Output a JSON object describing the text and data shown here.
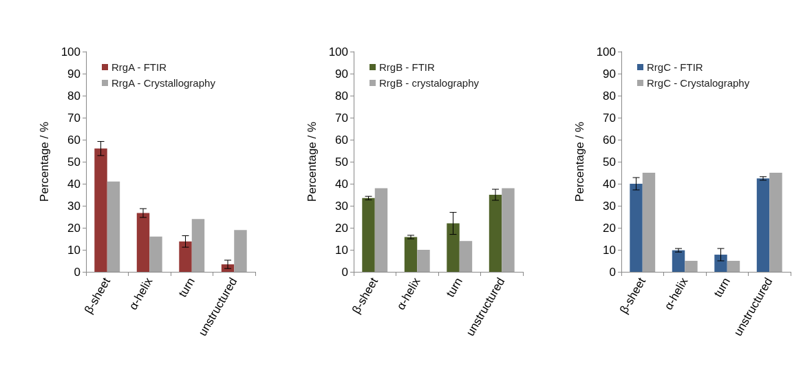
{
  "chart_data": [
    {
      "type": "bar",
      "categories": [
        "β-sheet",
        "α-helix",
        "turn",
        "unstructured"
      ],
      "ylabel": "Percentage / %",
      "ylim": [
        0,
        100
      ],
      "yticks": [
        0,
        10,
        20,
        30,
        40,
        50,
        60,
        70,
        80,
        90,
        100
      ],
      "grid": false,
      "legend": "top left",
      "series": [
        {
          "name": "RrgA - FTIR",
          "color": "#953735",
          "values": [
            56,
            26.7,
            13.8,
            3.4
          ],
          "errors": [
            3.2,
            2,
            2.6,
            1.9
          ]
        },
        {
          "name": "RrgA - Crystallography",
          "color": "#a6a6a6",
          "values": [
            41,
            16,
            24,
            19
          ]
        }
      ]
    },
    {
      "type": "bar",
      "categories": [
        "β-sheet",
        "α-helix",
        "turn",
        "unstructured"
      ],
      "ylabel": "Percentage / %",
      "ylim": [
        0,
        100
      ],
      "yticks": [
        0,
        10,
        20,
        30,
        40,
        50,
        60,
        70,
        80,
        90,
        100
      ],
      "grid": false,
      "legend": "top left",
      "series": [
        {
          "name": "RrgB - FTIR",
          "color": "#4f6228",
          "values": [
            33.5,
            15.8,
            22,
            35
          ],
          "errors": [
            0.8,
            0.8,
            5,
            2.5
          ]
        },
        {
          "name": "RrgB - crystalography",
          "color": "#a6a6a6",
          "values": [
            38,
            10,
            14,
            38
          ]
        }
      ]
    },
    {
      "type": "bar",
      "categories": [
        "β-sheet",
        "α-helix",
        "turn",
        "unstructured"
      ],
      "ylabel": "Percentage / %",
      "ylim": [
        0,
        100
      ],
      "yticks": [
        0,
        10,
        20,
        30,
        40,
        50,
        60,
        70,
        80,
        90,
        100
      ],
      "grid": false,
      "legend": "top left",
      "series": [
        {
          "name": "RrgC - FTIR",
          "color": "#376092",
          "values": [
            40,
            9.8,
            7.8,
            42.4
          ],
          "errors": [
            2.8,
            0.8,
            2.8,
            0.8
          ]
        },
        {
          "name": "RrgC - Crystalography",
          "color": "#a6a6a6",
          "values": [
            45,
            5,
            5,
            45
          ]
        }
      ]
    }
  ]
}
